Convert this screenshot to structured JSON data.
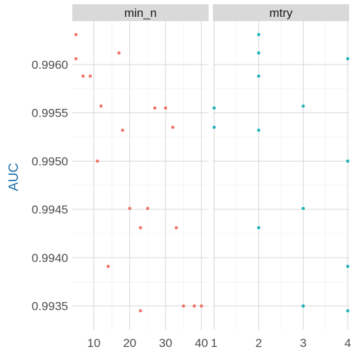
{
  "chart_data": {
    "type": "scatter",
    "ylabel": "AUC",
    "colors": {
      "ylabel": "#1f6fa8",
      "min_n": "#f07167",
      "mtry": "#22b2b6"
    },
    "ylim": [
      0.99325,
      0.99645
    ],
    "ymajor_ticks": [
      0.9935,
      0.994,
      0.9945,
      0.995,
      0.9955,
      0.996
    ],
    "ytick_labels": [
      "0.9935",
      "0.9940",
      "0.9945",
      "0.9950",
      "0.9955",
      "0.9960"
    ],
    "grid": true,
    "panels": [
      {
        "title": "min_n",
        "xlim": [
          4,
          42
        ],
        "xmajor_ticks": [
          10,
          20,
          30,
          40
        ],
        "xtick_labels": [
          "10",
          "20",
          "30",
          "40"
        ],
        "points": [
          {
            "x": 5,
            "y": 0.99631
          },
          {
            "x": 5,
            "y": 0.99606
          },
          {
            "x": 7,
            "y": 0.99588
          },
          {
            "x": 9,
            "y": 0.99588
          },
          {
            "x": 17,
            "y": 0.99612
          },
          {
            "x": 12,
            "y": 0.99557
          },
          {
            "x": 27,
            "y": 0.99555
          },
          {
            "x": 30,
            "y": 0.99555
          },
          {
            "x": 18,
            "y": 0.99532
          },
          {
            "x": 32,
            "y": 0.99535
          },
          {
            "x": 11,
            "y": 0.995
          },
          {
            "x": 20,
            "y": 0.99451
          },
          {
            "x": 25,
            "y": 0.99451
          },
          {
            "x": 23,
            "y": 0.99431
          },
          {
            "x": 33,
            "y": 0.99431
          },
          {
            "x": 14,
            "y": 0.99391
          },
          {
            "x": 35,
            "y": 0.9935
          },
          {
            "x": 38,
            "y": 0.9935
          },
          {
            "x": 40,
            "y": 0.9935
          },
          {
            "x": 23,
            "y": 0.99345
          }
        ]
      },
      {
        "title": "mtry",
        "xlim": [
          0.97,
          4.03
        ],
        "xmajor_ticks": [
          1,
          2,
          3,
          4
        ],
        "xtick_labels": [
          "1",
          "2",
          "3",
          "4"
        ],
        "points": [
          {
            "x": 2,
            "y": 0.99631
          },
          {
            "x": 2,
            "y": 0.99612
          },
          {
            "x": 4,
            "y": 0.99606
          },
          {
            "x": 2,
            "y": 0.99588
          },
          {
            "x": 3,
            "y": 0.99557
          },
          {
            "x": 1,
            "y": 0.99555
          },
          {
            "x": 1,
            "y": 0.99535
          },
          {
            "x": 2,
            "y": 0.99532
          },
          {
            "x": 4,
            "y": 0.995
          },
          {
            "x": 3,
            "y": 0.99451
          },
          {
            "x": 2,
            "y": 0.99431
          },
          {
            "x": 4,
            "y": 0.99391
          },
          {
            "x": 3,
            "y": 0.9935
          },
          {
            "x": 3,
            "y": 0.9935
          },
          {
            "x": 4,
            "y": 0.99345
          }
        ]
      }
    ]
  }
}
